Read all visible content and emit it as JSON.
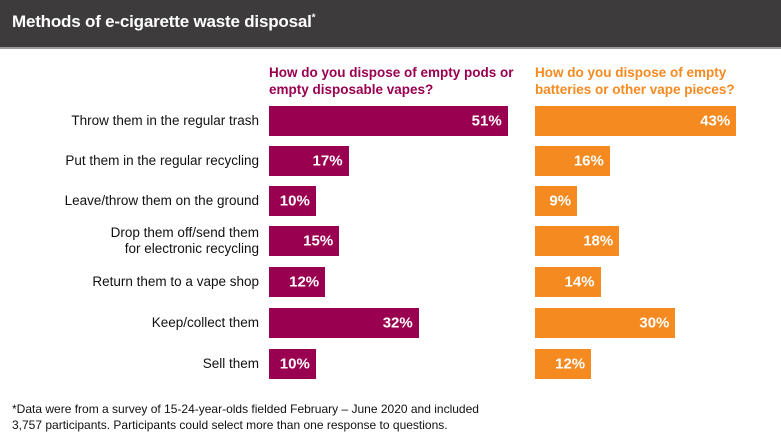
{
  "header": {
    "title": "Methods of e-cigarette waste disposal",
    "title_mark": "*"
  },
  "chart_data": {
    "type": "bar",
    "orientation": "horizontal",
    "categories": [
      "Throw them in the regular trash",
      "Put them in the regular recycling",
      "Leave/throw them on the ground",
      "Drop them off/send them\nfor electronic recycling",
      "Return them to a vape shop",
      "Keep/collect them",
      "Sell them"
    ],
    "series": [
      {
        "name": "How do you dispose of empty pods or empty disposable vapes?",
        "color": "#990050",
        "values": [
          51,
          17,
          10,
          15,
          12,
          32,
          10
        ],
        "labels": [
          "51%",
          "17%",
          "10%",
          "15%",
          "12%",
          "32%",
          "10%"
        ]
      },
      {
        "name": "How do you dispose of empty batteries or other vape pieces?",
        "color": "#f58a20",
        "values": [
          43,
          16,
          9,
          18,
          14,
          30,
          12
        ],
        "labels": [
          "43%",
          "16%",
          "9%",
          "18%",
          "14%",
          "30%",
          "12%"
        ]
      }
    ],
    "unit": "%",
    "grid": false,
    "legend": "column headers"
  },
  "footnote": "*Data were from a survey of 15-24-year-olds fielded February – June 2020 and included 3,757 participants. Participants could select more than one response to questions."
}
